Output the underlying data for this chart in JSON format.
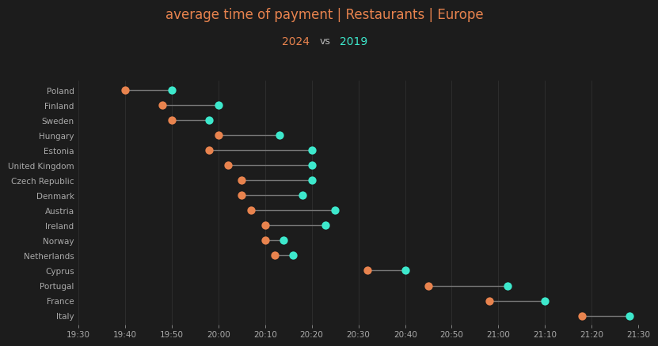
{
  "title_line1": "average time of payment | Restaurants | Europe",
  "background_color": "#1c1c1c",
  "title_color": "#e8834e",
  "subtitle_2024_color": "#e8834e",
  "subtitle_vs_color": "#bbbbbb",
  "subtitle_2019_color": "#3de8cc",
  "line_color": "#777777",
  "dot_2024_color": "#e8834e",
  "dot_2019_color": "#3de8cc",
  "countries": [
    "Poland",
    "Finland",
    "Sweden",
    "Hungary",
    "Estonia",
    "United Kingdom",
    "Czech Republic",
    "Denmark",
    "Austria",
    "Ireland",
    "Norway",
    "Netherlands",
    "Cyprus",
    "Portugal",
    "France",
    "Italy"
  ],
  "val_2024": [
    19.667,
    19.8,
    19.833,
    20.0,
    19.967,
    20.033,
    20.083,
    20.083,
    20.117,
    20.167,
    20.167,
    20.2,
    20.533,
    20.75,
    20.967,
    21.3
  ],
  "val_2019": [
    19.833,
    20.0,
    19.967,
    20.217,
    20.333,
    20.333,
    20.333,
    20.3,
    20.417,
    20.383,
    20.233,
    20.267,
    20.667,
    21.033,
    21.167,
    21.467
  ],
  "xmin": 19.5,
  "xmax": 21.5,
  "xticks": [
    19.5,
    19.667,
    19.833,
    20.0,
    20.167,
    20.333,
    20.5,
    20.667,
    20.833,
    21.0,
    21.167,
    21.333,
    21.5
  ],
  "xtick_labels": [
    "19:30",
    "19:40",
    "19:50",
    "20:00",
    "20:10",
    "20:20",
    "20:30",
    "20:40",
    "20:50",
    "21:00",
    "21:10",
    "21:20",
    "21:30"
  ],
  "text_color": "#aaaaaa",
  "dot_size": 55,
  "title_fontsize": 12,
  "subtitle_fontsize": 10,
  "tick_fontsize": 7.5,
  "country_fontsize": 7.5
}
